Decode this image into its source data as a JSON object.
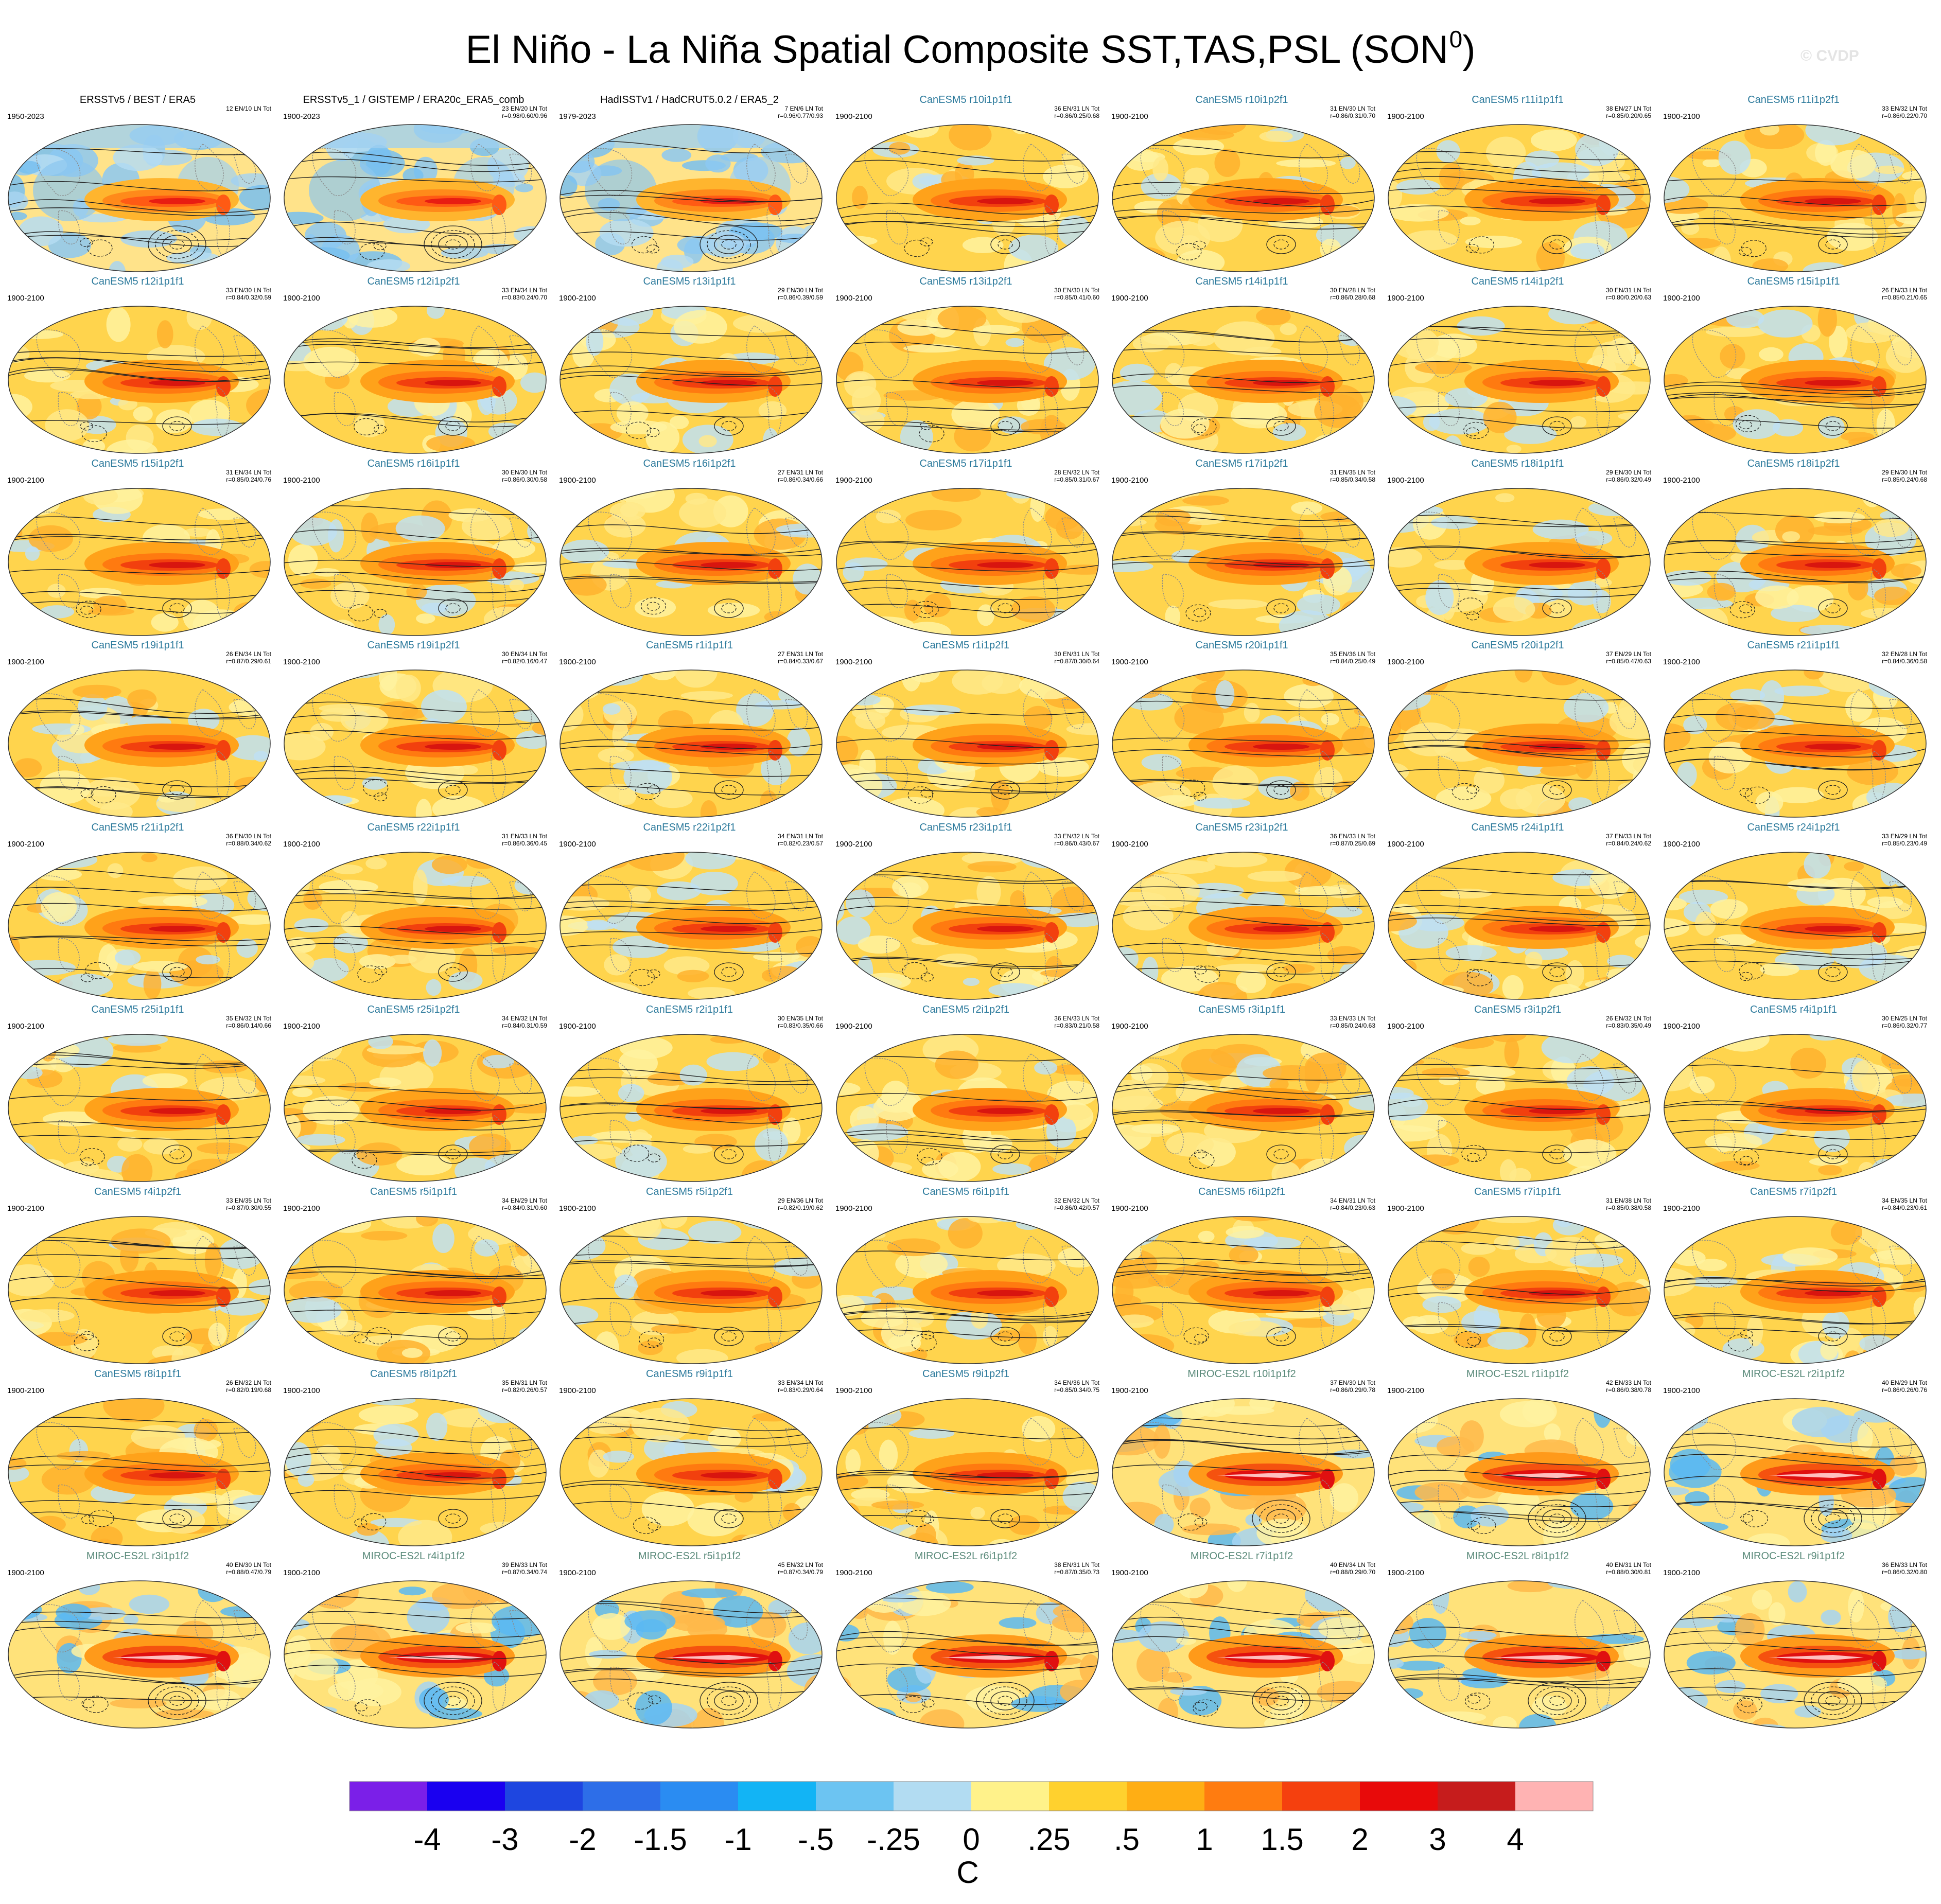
{
  "title": {
    "text": "El Niño - La Niña Spatial Composite SST,TAS,PSL (SON",
    "superscript": "0",
    "closing": ")"
  },
  "watermark": "© CVDP",
  "panels": [
    {
      "name": "ERSSTv5 / BEST / ERA5",
      "period": "1950-2023",
      "stats": "12 EN/10 LN Tot",
      "group": "obs",
      "style": 0
    },
    {
      "name": "ERSSTv5_1 / GISTEMP / ERA20c_ERA5_comb",
      "period": "1900-2023",
      "stats": "23 EN/20 LN Tot\nr=0.98/0.60/0.96",
      "group": "obs",
      "style": 0
    },
    {
      "name": "HadISSTv1 / HadCRUT5.0.2 / ERA5_2",
      "period": "1979-2023",
      "stats": "7 EN/6 LN Tot\nr=0.96/0.77/0.93",
      "group": "obs",
      "style": 0
    },
    {
      "name": "CanESM5 r10i1p1f1",
      "period": "1900-2100",
      "stats": "36 EN/31 LN Tot\nr=0.86/0.25/0.68",
      "group": "can",
      "style": 1
    },
    {
      "name": "CanESM5 r10i1p2f1",
      "period": "1900-2100",
      "stats": "31 EN/30 LN Tot\nr=0.86/0.31/0.70",
      "group": "can",
      "style": 1
    },
    {
      "name": "CanESM5 r11i1p1f1",
      "period": "1900-2100",
      "stats": "38 EN/27 LN Tot\nr=0.85/0.20/0.65",
      "group": "can",
      "style": 1
    },
    {
      "name": "CanESM5 r11i1p2f1",
      "period": "1900-2100",
      "stats": "33 EN/32 LN Tot\nr=0.86/0.22/0.70",
      "group": "can",
      "style": 1
    },
    {
      "name": "CanESM5 r12i1p1f1",
      "period": "1900-2100",
      "stats": "33 EN/30 LN Tot\nr=0.84/0.32/0.59",
      "group": "can",
      "style": 1
    },
    {
      "name": "CanESM5 r12i1p2f1",
      "period": "1900-2100",
      "stats": "33 EN/34 LN Tot\nr=0.83/0.24/0.70",
      "group": "can",
      "style": 1
    },
    {
      "name": "CanESM5 r13i1p1f1",
      "period": "1900-2100",
      "stats": "29 EN/30 LN Tot\nr=0.86/0.39/0.59",
      "group": "can",
      "style": 1
    },
    {
      "name": "CanESM5 r13i1p2f1",
      "period": "1900-2100",
      "stats": "30 EN/30 LN Tot\nr=0.85/0.41/0.60",
      "group": "can",
      "style": 1
    },
    {
      "name": "CanESM5 r14i1p1f1",
      "period": "1900-2100",
      "stats": "30 EN/28 LN Tot\nr=0.86/0.28/0.68",
      "group": "can",
      "style": 1
    },
    {
      "name": "CanESM5 r14i1p2f1",
      "period": "1900-2100",
      "stats": "30 EN/31 LN Tot\nr=0.80/0.20/0.63",
      "group": "can",
      "style": 1
    },
    {
      "name": "CanESM5 r15i1p1f1",
      "period": "1900-2100",
      "stats": "26 EN/33 LN Tot\nr=0.85/0.21/0.65",
      "group": "can",
      "style": 1
    },
    {
      "name": "CanESM5 r15i1p2f1",
      "period": "1900-2100",
      "stats": "31 EN/34 LN Tot\nr=0.85/0.24/0.76",
      "group": "can",
      "style": 1
    },
    {
      "name": "CanESM5 r16i1p1f1",
      "period": "1900-2100",
      "stats": "30 EN/30 LN Tot\nr=0.86/0.30/0.58",
      "group": "can",
      "style": 1
    },
    {
      "name": "CanESM5 r16i1p2f1",
      "period": "1900-2100",
      "stats": "27 EN/31 LN Tot\nr=0.86/0.34/0.66",
      "group": "can",
      "style": 1
    },
    {
      "name": "CanESM5 r17i1p1f1",
      "period": "1900-2100",
      "stats": "28 EN/32 LN Tot\nr=0.85/0.31/0.67",
      "group": "can",
      "style": 1
    },
    {
      "name": "CanESM5 r17i1p2f1",
      "period": "1900-2100",
      "stats": "31 EN/35 LN Tot\nr=0.85/0.34/0.58",
      "group": "can",
      "style": 1
    },
    {
      "name": "CanESM5 r18i1p1f1",
      "period": "1900-2100",
      "stats": "29 EN/30 LN Tot\nr=0.86/0.32/0.49",
      "group": "can",
      "style": 1
    },
    {
      "name": "CanESM5 r18i1p2f1",
      "period": "1900-2100",
      "stats": "29 EN/30 LN Tot\nr=0.85/0.24/0.68",
      "group": "can",
      "style": 1
    },
    {
      "name": "CanESM5 r19i1p1f1",
      "period": "1900-2100",
      "stats": "26 EN/34 LN Tot\nr=0.87/0.29/0.61",
      "group": "can",
      "style": 1
    },
    {
      "name": "CanESM5 r19i1p2f1",
      "period": "1900-2100",
      "stats": "30 EN/34 LN Tot\nr=0.82/0.16/0.47",
      "group": "can",
      "style": 1
    },
    {
      "name": "CanESM5 r1i1p1f1",
      "period": "1900-2100",
      "stats": "27 EN/31 LN Tot\nr=0.84/0.33/0.67",
      "group": "can",
      "style": 1
    },
    {
      "name": "CanESM5 r1i1p2f1",
      "period": "1900-2100",
      "stats": "30 EN/31 LN Tot\nr=0.87/0.30/0.64",
      "group": "can",
      "style": 1
    },
    {
      "name": "CanESM5 r20i1p1f1",
      "period": "1900-2100",
      "stats": "35 EN/36 LN Tot\nr=0.84/0.25/0.49",
      "group": "can",
      "style": 1
    },
    {
      "name": "CanESM5 r20i1p2f1",
      "period": "1900-2100",
      "stats": "37 EN/29 LN Tot\nr=0.85/0.47/0.63",
      "group": "can",
      "style": 1
    },
    {
      "name": "CanESM5 r21i1p1f1",
      "period": "1900-2100",
      "stats": "32 EN/28 LN Tot\nr=0.84/0.36/0.58",
      "group": "can",
      "style": 1
    },
    {
      "name": "CanESM5 r21i1p2f1",
      "period": "1900-2100",
      "stats": "36 EN/30 LN Tot\nr=0.88/0.34/0.62",
      "group": "can",
      "style": 1
    },
    {
      "name": "CanESM5 r22i1p1f1",
      "period": "1900-2100",
      "stats": "31 EN/33 LN Tot\nr=0.86/0.36/0.45",
      "group": "can",
      "style": 1
    },
    {
      "name": "CanESM5 r22i1p2f1",
      "period": "1900-2100",
      "stats": "34 EN/31 LN Tot\nr=0.82/0.23/0.57",
      "group": "can",
      "style": 1
    },
    {
      "name": "CanESM5 r23i1p1f1",
      "period": "1900-2100",
      "stats": "33 EN/32 LN Tot\nr=0.86/0.43/0.67",
      "group": "can",
      "style": 1
    },
    {
      "name": "CanESM5 r23i1p2f1",
      "period": "1900-2100",
      "stats": "36 EN/33 LN Tot\nr=0.87/0.25/0.69",
      "group": "can",
      "style": 1
    },
    {
      "name": "CanESM5 r24i1p1f1",
      "period": "1900-2100",
      "stats": "37 EN/33 LN Tot\nr=0.84/0.24/0.62",
      "group": "can",
      "style": 1
    },
    {
      "name": "CanESM5 r24i1p2f1",
      "period": "1900-2100",
      "stats": "33 EN/29 LN Tot\nr=0.85/0.23/0.49",
      "group": "can",
      "style": 1
    },
    {
      "name": "CanESM5 r25i1p1f1",
      "period": "1900-2100",
      "stats": "35 EN/32 LN Tot\nr=0.86/0.14/0.66",
      "group": "can",
      "style": 1
    },
    {
      "name": "CanESM5 r25i1p2f1",
      "period": "1900-2100",
      "stats": "34 EN/32 LN Tot\nr=0.84/0.31/0.59",
      "group": "can",
      "style": 1
    },
    {
      "name": "CanESM5 r2i1p1f1",
      "period": "1900-2100",
      "stats": "30 EN/35 LN Tot\nr=0.83/0.35/0.66",
      "group": "can",
      "style": 1
    },
    {
      "name": "CanESM5 r2i1p2f1",
      "period": "1900-2100",
      "stats": "36 EN/33 LN Tot\nr=0.83/0.21/0.58",
      "group": "can",
      "style": 1
    },
    {
      "name": "CanESM5 r3i1p1f1",
      "period": "1900-2100",
      "stats": "33 EN/33 LN Tot\nr=0.85/0.24/0.63",
      "group": "can",
      "style": 1
    },
    {
      "name": "CanESM5 r3i1p2f1",
      "period": "1900-2100",
      "stats": "26 EN/32 LN Tot\nr=0.83/0.35/0.49",
      "group": "can",
      "style": 1
    },
    {
      "name": "CanESM5 r4i1p1f1",
      "period": "1900-2100",
      "stats": "30 EN/25 LN Tot\nr=0.86/0.32/0.77",
      "group": "can",
      "style": 1
    },
    {
      "name": "CanESM5 r4i1p2f1",
      "period": "1900-2100",
      "stats": "33 EN/35 LN Tot\nr=0.87/0.30/0.55",
      "group": "can",
      "style": 1
    },
    {
      "name": "CanESM5 r5i1p1f1",
      "period": "1900-2100",
      "stats": "34 EN/29 LN Tot\nr=0.84/0.31/0.60",
      "group": "can",
      "style": 1
    },
    {
      "name": "CanESM5 r5i1p2f1",
      "period": "1900-2100",
      "stats": "29 EN/36 LN Tot\nr=0.82/0.19/0.62",
      "group": "can",
      "style": 1
    },
    {
      "name": "CanESM5 r6i1p1f1",
      "period": "1900-2100",
      "stats": "32 EN/32 LN Tot\nr=0.86/0.42/0.57",
      "group": "can",
      "style": 1
    },
    {
      "name": "CanESM5 r6i1p2f1",
      "period": "1900-2100",
      "stats": "34 EN/31 LN Tot\nr=0.84/0.23/0.63",
      "group": "can",
      "style": 1
    },
    {
      "name": "CanESM5 r7i1p1f1",
      "period": "1900-2100",
      "stats": "31 EN/38 LN Tot\nr=0.85/0.38/0.58",
      "group": "can",
      "style": 1
    },
    {
      "name": "CanESM5 r7i1p2f1",
      "period": "1900-2100",
      "stats": "34 EN/35 LN Tot\nr=0.84/0.23/0.61",
      "group": "can",
      "style": 1
    },
    {
      "name": "CanESM5 r8i1p1f1",
      "period": "1900-2100",
      "stats": "26 EN/32 LN Tot\nr=0.82/0.19/0.68",
      "group": "can",
      "style": 1
    },
    {
      "name": "CanESM5 r8i1p2f1",
      "period": "1900-2100",
      "stats": "35 EN/31 LN Tot\nr=0.82/0.26/0.57",
      "group": "can",
      "style": 1
    },
    {
      "name": "CanESM5 r9i1p1f1",
      "period": "1900-2100",
      "stats": "33 EN/34 LN Tot\nr=0.83/0.29/0.64",
      "group": "can",
      "style": 1
    },
    {
      "name": "CanESM5 r9i1p2f1",
      "period": "1900-2100",
      "stats": "34 EN/36 LN Tot\nr=0.85/0.34/0.75",
      "group": "can",
      "style": 1
    },
    {
      "name": "MIROC-ES2L r10i1p1f2",
      "period": "1900-2100",
      "stats": "37 EN/30 LN Tot\nr=0.86/0.29/0.78",
      "group": "mir",
      "style": 2
    },
    {
      "name": "MIROC-ES2L r1i1p1f2",
      "period": "1900-2100",
      "stats": "42 EN/33 LN Tot\nr=0.86/0.38/0.78",
      "group": "mir",
      "style": 2
    },
    {
      "name": "MIROC-ES2L r2i1p1f2",
      "period": "1900-2100",
      "stats": "40 EN/29 LN Tot\nr=0.86/0.26/0.76",
      "group": "mir",
      "style": 2
    },
    {
      "name": "MIROC-ES2L r3i1p1f2",
      "period": "1900-2100",
      "stats": "40 EN/30 LN Tot\nr=0.88/0.47/0.79",
      "group": "mir",
      "style": 2
    },
    {
      "name": "MIROC-ES2L r4i1p1f2",
      "period": "1900-2100",
      "stats": "39 EN/33 LN Tot\nr=0.87/0.34/0.74",
      "group": "mir",
      "style": 2
    },
    {
      "name": "MIROC-ES2L r5i1p1f2",
      "period": "1900-2100",
      "stats": "45 EN/32 LN Tot\nr=0.87/0.34/0.79",
      "group": "mir",
      "style": 2
    },
    {
      "name": "MIROC-ES2L r6i1p1f2",
      "period": "1900-2100",
      "stats": "38 EN/31 LN Tot\nr=0.87/0.35/0.73",
      "group": "mir",
      "style": 2
    },
    {
      "name": "MIROC-ES2L r7i1p1f2",
      "period": "1900-2100",
      "stats": "40 EN/34 LN Tot\nr=0.88/0.29/0.70",
      "group": "mir",
      "style": 2
    },
    {
      "name": "MIROC-ES2L r8i1p1f2",
      "period": "1900-2100",
      "stats": "40 EN/31 LN Tot\nr=0.88/0.30/0.81",
      "group": "mir",
      "style": 2
    },
    {
      "name": "MIROC-ES2L r9i1p1f2",
      "period": "1900-2100",
      "stats": "36 EN/33 LN Tot\nr=0.86/0.32/0.80",
      "group": "mir",
      "style": 2
    }
  ],
  "colorbar": {
    "colors": [
      "#7b1fe8",
      "#1a00f0",
      "#1e46e0",
      "#2d6ee8",
      "#2a8cf2",
      "#12b4f5",
      "#6cc4f2",
      "#b2dcf2",
      "#fff28a",
      "#ffd12e",
      "#ffae14",
      "#ff7c10",
      "#f5400e",
      "#e80a0a",
      "#c61c1c",
      "#ffb3b3"
    ],
    "labels": [
      "-4",
      "-3",
      "-2",
      "-1.5",
      "-1",
      "-.5",
      "-.25",
      "0",
      ".25",
      ".5",
      "1",
      "1.5",
      "2",
      "3",
      "4"
    ],
    "unit": "C"
  }
}
